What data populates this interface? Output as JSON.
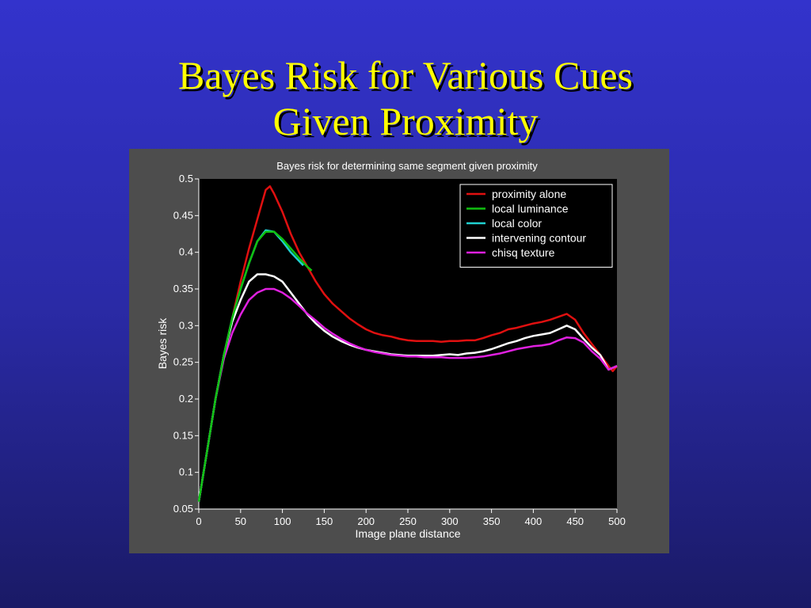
{
  "slide": {
    "title_line1": "Bayes Risk for Various Cues",
    "title_line2": "Given Proximity"
  },
  "colors": {
    "background": "#3333cc",
    "title": "#ffff00",
    "figure_bg": "#4d4d4d",
    "plot_bg": "#000000"
  },
  "chart_data": {
    "type": "line",
    "title": "Bayes risk for determining same segment given proximity",
    "xlabel": "Image plane distance",
    "ylabel": "Bayes risk",
    "xlim": [
      0,
      500
    ],
    "ylim": [
      0.05,
      0.5
    ],
    "xticks": [
      0,
      50,
      100,
      150,
      200,
      250,
      300,
      350,
      400,
      450,
      500
    ],
    "yticks": [
      0.05,
      0.1,
      0.15,
      0.2,
      0.25,
      0.3,
      0.35,
      0.4,
      0.45,
      0.5
    ],
    "xtick_labels": [
      "0",
      "50",
      "100",
      "150",
      "200",
      "250",
      "300",
      "350",
      "400",
      "450",
      "500"
    ],
    "ytick_labels": [
      "0.05",
      "0.1",
      "0.15",
      "0.2",
      "0.25",
      "0.3",
      "0.35",
      "0.4",
      "0.45",
      "0.5"
    ],
    "grid": false,
    "legend_position": "top-right",
    "series": [
      {
        "name": "proximity alone",
        "color": "#e01010",
        "x": [
          0,
          10,
          20,
          30,
          40,
          50,
          60,
          70,
          80,
          85,
          90,
          100,
          110,
          120,
          130,
          140,
          150,
          160,
          170,
          180,
          190,
          200,
          210,
          220,
          230,
          240,
          250,
          260,
          270,
          280,
          290,
          300,
          310,
          320,
          330,
          340,
          350,
          360,
          370,
          380,
          390,
          400,
          410,
          420,
          430,
          440,
          450,
          460,
          470,
          480,
          490,
          495,
          500
        ],
        "y": [
          0.06,
          0.13,
          0.2,
          0.26,
          0.31,
          0.36,
          0.405,
          0.445,
          0.485,
          0.49,
          0.48,
          0.455,
          0.425,
          0.4,
          0.38,
          0.36,
          0.343,
          0.33,
          0.32,
          0.31,
          0.302,
          0.295,
          0.29,
          0.287,
          0.285,
          0.282,
          0.28,
          0.279,
          0.279,
          0.279,
          0.278,
          0.279,
          0.279,
          0.28,
          0.28,
          0.283,
          0.287,
          0.29,
          0.295,
          0.297,
          0.3,
          0.303,
          0.305,
          0.308,
          0.312,
          0.316,
          0.308,
          0.29,
          0.275,
          0.26,
          0.245,
          0.238,
          0.245
        ]
      },
      {
        "name": "local luminance",
        "color": "#10c010",
        "x": [
          0,
          10,
          20,
          30,
          40,
          50,
          60,
          70,
          80,
          90,
          100,
          110,
          120,
          130,
          135
        ],
        "y": [
          0.06,
          0.13,
          0.2,
          0.26,
          0.31,
          0.35,
          0.385,
          0.415,
          0.428,
          0.428,
          0.418,
          0.405,
          0.392,
          0.38,
          0.375
        ]
      },
      {
        "name": "local color",
        "color": "#20d0d0",
        "x": [
          0,
          10,
          20,
          30,
          40,
          50,
          60,
          70,
          80,
          90,
          100,
          110,
          120,
          125
        ],
        "y": [
          0.06,
          0.13,
          0.2,
          0.26,
          0.31,
          0.35,
          0.385,
          0.415,
          0.43,
          0.428,
          0.415,
          0.4,
          0.388,
          0.382
        ]
      },
      {
        "name": "intervening contour",
        "color": "#ffffff",
        "x": [
          0,
          10,
          20,
          30,
          40,
          50,
          60,
          70,
          80,
          90,
          100,
          110,
          120,
          130,
          140,
          150,
          160,
          170,
          180,
          190,
          200,
          210,
          220,
          230,
          240,
          250,
          260,
          270,
          280,
          290,
          300,
          310,
          320,
          330,
          340,
          350,
          360,
          370,
          380,
          390,
          400,
          410,
          420,
          430,
          440,
          450,
          460,
          470,
          480,
          490,
          500
        ],
        "y": [
          0.06,
          0.13,
          0.2,
          0.26,
          0.305,
          0.335,
          0.36,
          0.37,
          0.37,
          0.367,
          0.36,
          0.345,
          0.33,
          0.315,
          0.303,
          0.293,
          0.285,
          0.279,
          0.274,
          0.27,
          0.267,
          0.265,
          0.263,
          0.261,
          0.26,
          0.259,
          0.259,
          0.259,
          0.259,
          0.26,
          0.261,
          0.26,
          0.262,
          0.263,
          0.265,
          0.268,
          0.272,
          0.276,
          0.279,
          0.283,
          0.286,
          0.288,
          0.29,
          0.295,
          0.3,
          0.295,
          0.282,
          0.27,
          0.26,
          0.24,
          0.245
        ]
      },
      {
        "name": "chisq texture",
        "color": "#e020e0",
        "x": [
          0,
          10,
          20,
          30,
          40,
          50,
          60,
          70,
          80,
          90,
          100,
          110,
          120,
          130,
          140,
          150,
          160,
          170,
          180,
          190,
          200,
          210,
          220,
          230,
          240,
          250,
          260,
          270,
          280,
          290,
          300,
          310,
          320,
          330,
          340,
          350,
          360,
          370,
          380,
          390,
          400,
          410,
          420,
          430,
          440,
          450,
          460,
          470,
          480,
          490,
          500
        ],
        "y": [
          0.06,
          0.13,
          0.2,
          0.255,
          0.29,
          0.315,
          0.335,
          0.345,
          0.35,
          0.35,
          0.345,
          0.337,
          0.327,
          0.316,
          0.307,
          0.297,
          0.289,
          0.282,
          0.276,
          0.271,
          0.267,
          0.264,
          0.262,
          0.26,
          0.259,
          0.258,
          0.258,
          0.257,
          0.257,
          0.257,
          0.256,
          0.256,
          0.256,
          0.257,
          0.258,
          0.26,
          0.262,
          0.265,
          0.268,
          0.27,
          0.272,
          0.273,
          0.275,
          0.28,
          0.284,
          0.283,
          0.277,
          0.265,
          0.255,
          0.24,
          0.245
        ]
      }
    ]
  }
}
